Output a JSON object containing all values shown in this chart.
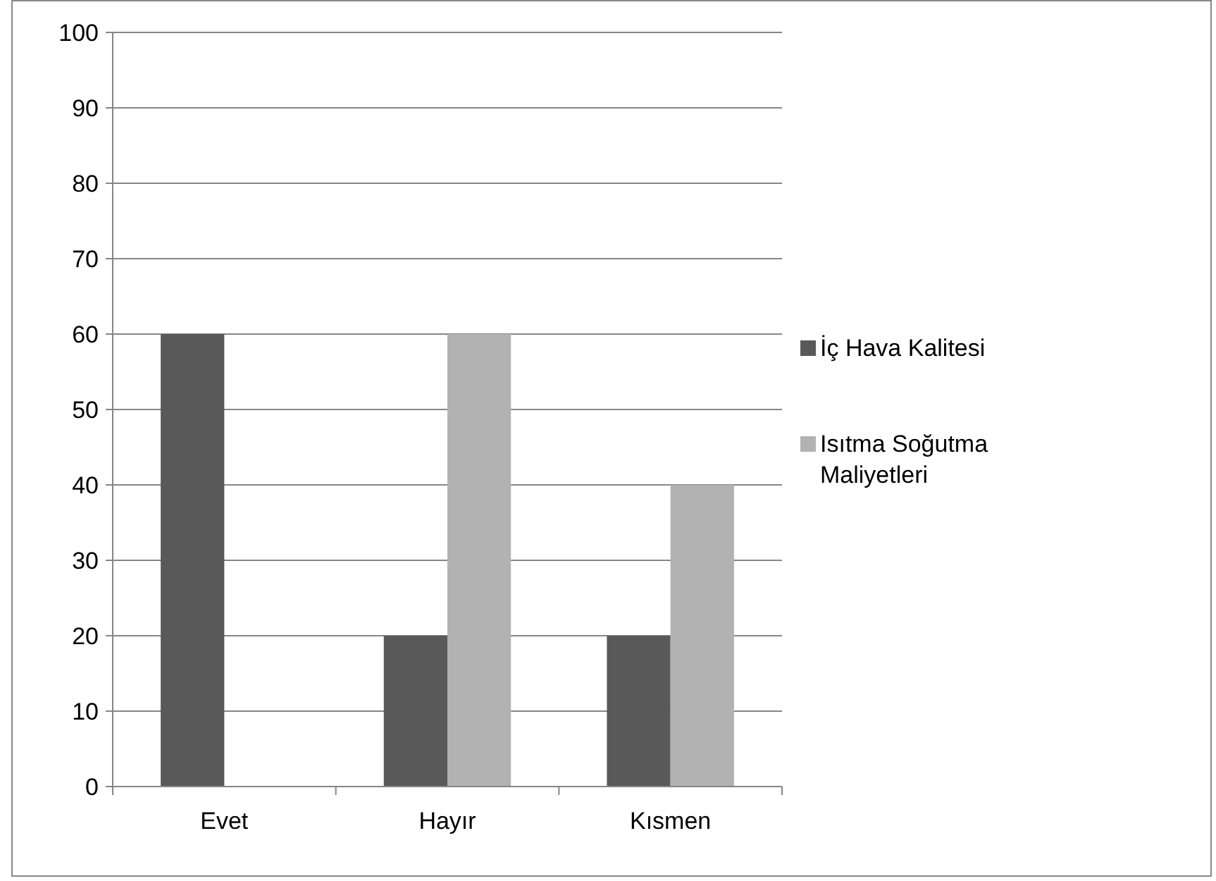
{
  "chart_data": {
    "type": "bar",
    "categories": [
      "Evet",
      "Hayır",
      "Kısmen"
    ],
    "series": [
      {
        "name": "İç Hava Kalitesi",
        "color": "#595959",
        "values": [
          60,
          20,
          20
        ]
      },
      {
        "name": "Isıtma Soğutma Maliyetleri",
        "color": "#b2b2b2",
        "values": [
          0,
          60,
          40
        ]
      }
    ],
    "ylim": [
      0,
      100
    ],
    "yticks": [
      0,
      10,
      20,
      30,
      40,
      50,
      60,
      70,
      80,
      90,
      100
    ],
    "grid": "y",
    "legend": "right"
  }
}
